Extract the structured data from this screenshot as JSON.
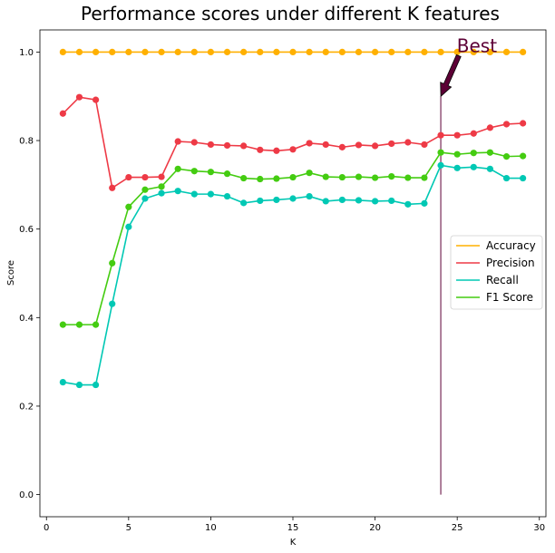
{
  "chart_data": {
    "type": "line",
    "title": "Performance scores under different K features",
    "xlabel": "K",
    "ylabel": "Score",
    "xlim": [
      -0.4,
      30.4
    ],
    "ylim": [
      -0.05,
      1.05
    ],
    "xticks": [
      0,
      5,
      10,
      15,
      20,
      25,
      30
    ],
    "yticks": [
      0.0,
      0.2,
      0.4,
      0.6,
      0.8,
      1.0
    ],
    "x": [
      1,
      2,
      3,
      4,
      5,
      6,
      7,
      8,
      9,
      10,
      11,
      12,
      13,
      14,
      15,
      16,
      17,
      18,
      19,
      20,
      21,
      22,
      23,
      24,
      25,
      26,
      27,
      28,
      29
    ],
    "series": [
      {
        "name": "Accuracy",
        "color": "#ffb000",
        "values": [
          1.0,
          1.0,
          1.0,
          1.0,
          1.0,
          1.0,
          1.0,
          1.0,
          1.0,
          1.0,
          1.0,
          1.0,
          1.0,
          1.0,
          1.0,
          1.0,
          1.0,
          1.0,
          1.0,
          1.0,
          1.0,
          1.0,
          1.0,
          1.0,
          1.0,
          1.0,
          1.0,
          1.0,
          1.0
        ]
      },
      {
        "name": "Precision",
        "color": "#ee3a46",
        "values": [
          0.861,
          0.898,
          0.892,
          0.693,
          0.717,
          0.717,
          0.718,
          0.798,
          0.796,
          0.791,
          0.789,
          0.788,
          0.779,
          0.777,
          0.78,
          0.794,
          0.791,
          0.785,
          0.79,
          0.788,
          0.793,
          0.796,
          0.791,
          0.812,
          0.812,
          0.816,
          0.829,
          0.837,
          0.839
        ]
      },
      {
        "name": "Recall",
        "color": "#00c8b4",
        "values": [
          0.254,
          0.248,
          0.248,
          0.431,
          0.605,
          0.669,
          0.681,
          0.686,
          0.679,
          0.679,
          0.674,
          0.659,
          0.664,
          0.666,
          0.669,
          0.674,
          0.663,
          0.666,
          0.665,
          0.663,
          0.664,
          0.656,
          0.658,
          0.744,
          0.738,
          0.74,
          0.736,
          0.715,
          0.715
        ]
      },
      {
        "name": "F1 Score",
        "color": "#44cc11",
        "values": [
          0.384,
          0.384,
          0.384,
          0.523,
          0.65,
          0.689,
          0.696,
          0.736,
          0.731,
          0.729,
          0.725,
          0.715,
          0.713,
          0.714,
          0.717,
          0.727,
          0.718,
          0.717,
          0.718,
          0.716,
          0.719,
          0.716,
          0.716,
          0.773,
          0.769,
          0.772,
          0.773,
          0.764,
          0.765
        ]
      }
    ],
    "vline": {
      "x": 24,
      "ymin": 0.0,
      "ymax": 0.9,
      "color": "#5c0035"
    },
    "annotation": {
      "text": "Best",
      "xy": [
        24,
        0.9
      ],
      "xytext": [
        25.2,
        1.0
      ],
      "color": "#5c0035"
    },
    "legend": {
      "position": "center-right",
      "labels": [
        "Accuracy",
        "Precision",
        "Recall",
        "F1 Score"
      ]
    },
    "grid": false
  }
}
